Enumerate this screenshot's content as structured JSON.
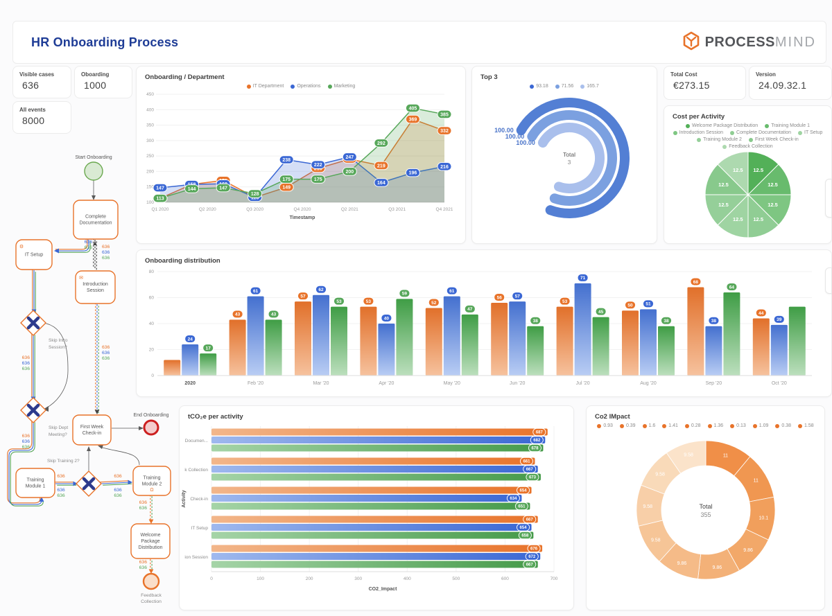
{
  "header": {
    "title": "HR Onboarding Process",
    "brand_bold": "PROCESS",
    "brand_light": "MIND"
  },
  "kpis": {
    "visible_cases": {
      "label": "Visible cases",
      "value": "636"
    },
    "oboarding": {
      "label": "Oboarding",
      "value": "1000"
    },
    "all_events": {
      "label": "All events",
      "value": "8000"
    },
    "total_cost": {
      "label": "Total Cost",
      "value": "€273.15"
    },
    "version": {
      "label": "Version",
      "value": "24.09.32.1"
    }
  },
  "colors": {
    "orange": "#e8732a",
    "blue": "#3a67d4",
    "green": "#57a75a",
    "navy": "#1e3c96"
  },
  "chart_data": [
    {
      "id": "line",
      "type": "line",
      "title": "Onboarding / Department",
      "xlabel": "Timestamp",
      "x_ticks": [
        "Q1 2020",
        "Q2 2020",
        "Q3 2020",
        "Q4 2020",
        "Q2 2021",
        "Q3 2021",
        "Q4 2021"
      ],
      "ylim": [
        100,
        450
      ],
      "y_ticks": [
        450,
        400,
        350,
        300,
        250,
        200,
        150,
        100
      ],
      "grid": true,
      "legend_position": "top",
      "series": [
        {
          "name": "IT Department",
          "color": "#e8732a",
          "values": [
            113,
            158,
            171,
            116,
            149,
            210,
            240,
            219,
            369,
            332
          ]
        },
        {
          "name": "Operations",
          "color": "#3a67d4",
          "values": [
            147,
            158,
            160,
            116,
            238,
            222,
            247,
            164,
            196,
            216
          ]
        },
        {
          "name": "Marketing",
          "color": "#57a75a",
          "values": [
            113,
            144,
            147,
            128,
            175,
            175,
            200,
            292,
            405,
            385
          ]
        }
      ]
    },
    {
      "id": "radial",
      "type": "radial-gauge",
      "title": "Top 3",
      "legend": [
        {
          "label": "93.18",
          "color": "#3a67d4"
        },
        {
          "label": "71.56",
          "color": "#7ba0e0"
        },
        {
          "label": "165.7",
          "color": "#a9bfec"
        }
      ],
      "arcs": [
        {
          "label": "100.00",
          "color": "#537fd4"
        },
        {
          "label": "100.00",
          "color": "#7ba0e0"
        },
        {
          "label": "100.00",
          "color": "#a9bfec"
        }
      ],
      "center": {
        "label": "Total",
        "value": "3"
      }
    },
    {
      "id": "pie",
      "type": "pie",
      "title": "Cost per Activity",
      "categories": [
        "Welcome Package Distribution",
        "Training Module 1",
        "Introduction Session",
        "Complete Documentation",
        "IT Setup",
        "Training Module 2",
        "First Week Check-in",
        "Feedback Collection"
      ],
      "values": [
        12.5,
        12.5,
        12.5,
        12.5,
        12.5,
        12.5,
        12.5,
        12.5
      ],
      "slice_labels": [
        "12.5",
        "12.5",
        "12.5",
        "12.5",
        "12.5",
        "12.5",
        "12.5",
        "12.5"
      ],
      "colors": [
        "#53b058",
        "#68bb6d",
        "#7ec682",
        "#90cd94",
        "#9fd4a2",
        "#95cf99",
        "#88c98c",
        "#add9af"
      ]
    },
    {
      "id": "bars",
      "type": "bar",
      "title": "Onboarding distribution",
      "categories": [
        "2020",
        "Feb '20",
        "Mar '20",
        "Apr '20",
        "May '20",
        "Jun '20",
        "Jul '20",
        "Aug '20",
        "Sep '20",
        "Oct '20"
      ],
      "ylim": [
        0,
        80
      ],
      "y_ticks": [
        0,
        20,
        40,
        60,
        80
      ],
      "grid": true,
      "series": [
        {
          "name": "IT Department",
          "color": "#e8732a",
          "values": [
            12,
            43,
            57,
            53,
            52,
            56,
            53,
            50,
            68,
            44
          ],
          "labels": [
            null,
            "43",
            "57",
            "53",
            "52",
            "56",
            "53",
            "50",
            "68",
            "44"
          ]
        },
        {
          "name": "Operations",
          "color": "#3a67d4",
          "values": [
            24,
            61,
            62,
            40,
            61,
            57,
            71,
            51,
            38,
            39
          ],
          "labels": [
            "24",
            "61",
            "62",
            "40",
            "61",
            "57",
            "71",
            "51",
            "38",
            "39"
          ]
        },
        {
          "name": "Marketing",
          "color": "#57a75a",
          "values": [
            17,
            43,
            53,
            59,
            47,
            38,
            45,
            38,
            64,
            53
          ],
          "labels": [
            "17",
            "43",
            "53",
            "59",
            "47",
            "38",
            "45",
            "38",
            "64",
            null
          ]
        }
      ]
    },
    {
      "id": "hbars",
      "type": "hbar",
      "title": "tCO₂e per activity",
      "xlabel": "CO2_Impact",
      "ylabel": "Activity",
      "xlim": [
        0,
        700
      ],
      "x_ticks": [
        0,
        100,
        200,
        300,
        400,
        500,
        600,
        700
      ],
      "grid": true,
      "categories": [
        "Documen...",
        "k Collection",
        "Check-in",
        "IT Setup",
        "ion Session"
      ],
      "series": [
        {
          "name": "IT Department",
          "color": "#e8732a",
          "values": [
            687,
            661,
            654,
            667,
            676
          ]
        },
        {
          "name": "Operations",
          "color": "#3a67d4",
          "values": [
            682,
            667,
            634,
            654,
            672
          ]
        },
        {
          "name": "Marketing",
          "color": "#57a75a",
          "values": [
            678,
            673,
            651,
            658,
            667
          ]
        }
      ]
    },
    {
      "id": "donut",
      "type": "donut",
      "title": "Co2 IMpact",
      "legend": [
        "0.93",
        "0.39",
        "1.6",
        "1.41",
        "0.28",
        "1.36",
        "0.13",
        "1.09",
        "0.38",
        "1.58"
      ],
      "values": [
        11,
        11,
        10.1,
        9.86,
        9.86,
        9.86,
        9.58,
        9.58,
        9.58,
        9.58
      ],
      "segment_labels": [
        "11",
        "11",
        "10.1",
        "9.86",
        "9.86",
        "9.86",
        "9.58",
        "9.58",
        "9.58",
        "9.58"
      ],
      "colors": [
        "#f08f48",
        "#f09751",
        "#f19f5c",
        "#f2a869",
        "#f3b178",
        "#f5bb88",
        "#f6c597",
        "#f8cfa8",
        "#f9dab9",
        "#fbe3ca"
      ],
      "center": {
        "label": "Total",
        "value": "355"
      }
    }
  ],
  "flow": {
    "edge_count": "636",
    "nodes": [
      {
        "id": "start",
        "type": "event-start",
        "label": "Start Onboarding",
        "lines": [
          "Start Onboarding"
        ]
      },
      {
        "id": "complete-documentation",
        "type": "task",
        "label": "Complete Documentation",
        "lines": [
          "Complete",
          "Documentation"
        ]
      },
      {
        "id": "it-setup",
        "type": "task",
        "label": "IT Setup",
        "lines": [
          "IT Setup"
        ],
        "icon": "tools-icon"
      },
      {
        "id": "introduction-session",
        "type": "task",
        "label": "Introduction Session",
        "lines": [
          "Introduction",
          "Session"
        ],
        "icon": "mail-icon"
      },
      {
        "id": "gw-skip-intro",
        "type": "gateway",
        "label": "Skip Intro Session?",
        "lines": [
          "Skip Intro",
          "Session?"
        ]
      },
      {
        "id": "gw-skip-dept",
        "type": "gateway",
        "label": "Skip Dept Meeting?",
        "lines": [
          "Skip Dept",
          "Meeting?"
        ]
      },
      {
        "id": "first-week-check-in",
        "type": "task",
        "label": "First Week Check-in",
        "lines": [
          "First Week",
          "Check-in"
        ]
      },
      {
        "id": "end",
        "type": "event-end",
        "label": "End Onboarding",
        "lines": [
          "End Onboarding"
        ]
      },
      {
        "id": "training-module-1",
        "type": "task",
        "label": "Training Module 1",
        "lines": [
          "Training",
          "Module 1"
        ]
      },
      {
        "id": "gw-skip-training",
        "type": "gateway",
        "label": "Skip Training 2?",
        "lines": [
          "Skip Training 2?"
        ]
      },
      {
        "id": "training-module-2",
        "type": "task",
        "label": "Training Module 2",
        "lines": [
          "Training",
          "Module 2"
        ],
        "icon": "bell-icon"
      },
      {
        "id": "welcome-package",
        "type": "task",
        "label": "Welcome Package Distribution",
        "lines": [
          "Welcome",
          "Package",
          "Distribution"
        ]
      },
      {
        "id": "feedback-collection",
        "type": "event-intermediate",
        "label": "Feedback Collection",
        "lines": [
          "Feedback",
          "Collection"
        ]
      }
    ]
  }
}
